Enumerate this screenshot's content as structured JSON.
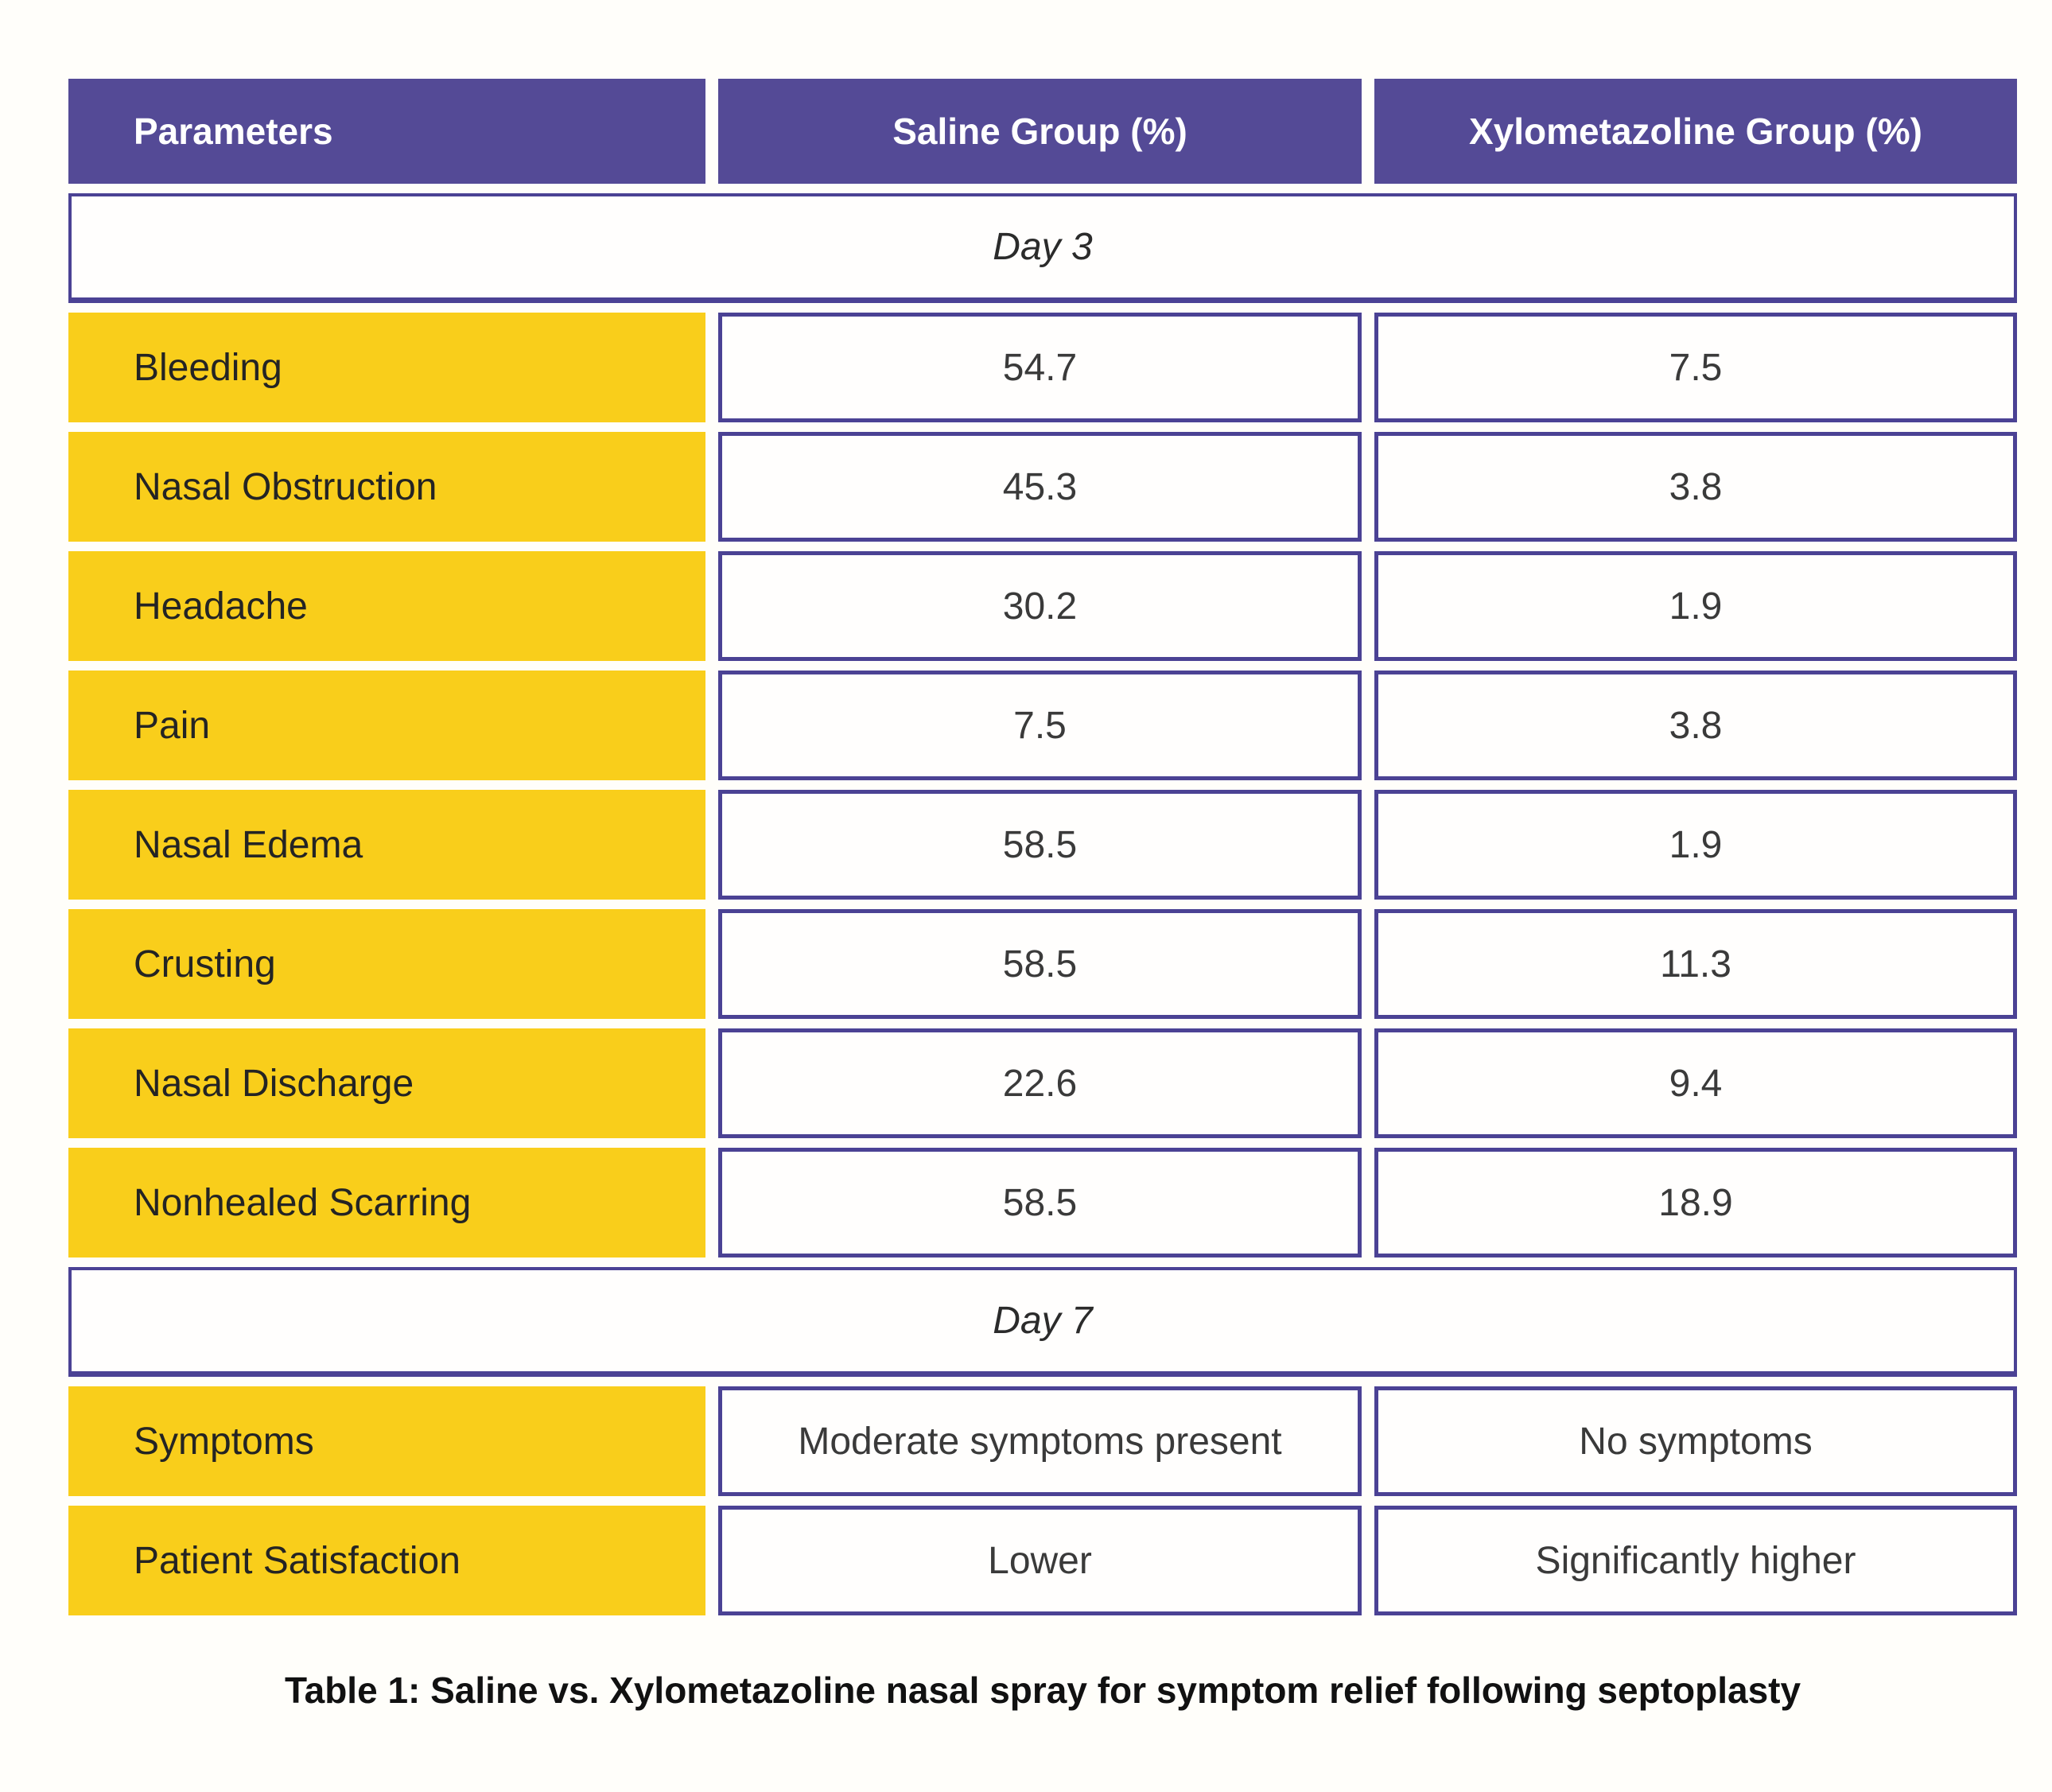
{
  "page": {
    "caption": "Table 1: Saline vs. Xylometazoline nasal spray for symptom relief following septoplasty"
  },
  "colors": {
    "header_background": "#544a96",
    "cell_border": "#4b4294",
    "parameter_background": "#f9ce1b",
    "header_text": "#ffffff",
    "body_text": "#2e2e2e",
    "page_background": "#fffefa"
  },
  "table": {
    "columns": [
      "Parameters",
      "Saline Group (%)",
      "Xylometazoline Group (%)"
    ],
    "sections": [
      {
        "title": "Day 3",
        "rows": [
          {
            "parameter": "Bleeding",
            "saline": "54.7",
            "xylometazoline": "7.5"
          },
          {
            "parameter": "Nasal Obstruction",
            "saline": "45.3",
            "xylometazoline": "3.8"
          },
          {
            "parameter": "Headache",
            "saline": "30.2",
            "xylometazoline": "1.9"
          },
          {
            "parameter": "Pain",
            "saline": "7.5",
            "xylometazoline": "3.8"
          },
          {
            "parameter": "Nasal Edema",
            "saline": "58.5",
            "xylometazoline": "1.9"
          },
          {
            "parameter": "Crusting",
            "saline": "58.5",
            "xylometazoline": "11.3"
          },
          {
            "parameter": "Nasal Discharge",
            "saline": "22.6",
            "xylometazoline": "9.4"
          },
          {
            "parameter": "Nonhealed Scarring",
            "saline": "58.5",
            "xylometazoline": "18.9"
          }
        ]
      },
      {
        "title": "Day 7",
        "rows": [
          {
            "parameter": "Symptoms",
            "saline": "Moderate symptoms present",
            "xylometazoline": "No symptoms"
          },
          {
            "parameter": "Patient Satisfaction",
            "saline": "Lower",
            "xylometazoline": "Significantly higher"
          }
        ]
      }
    ]
  }
}
